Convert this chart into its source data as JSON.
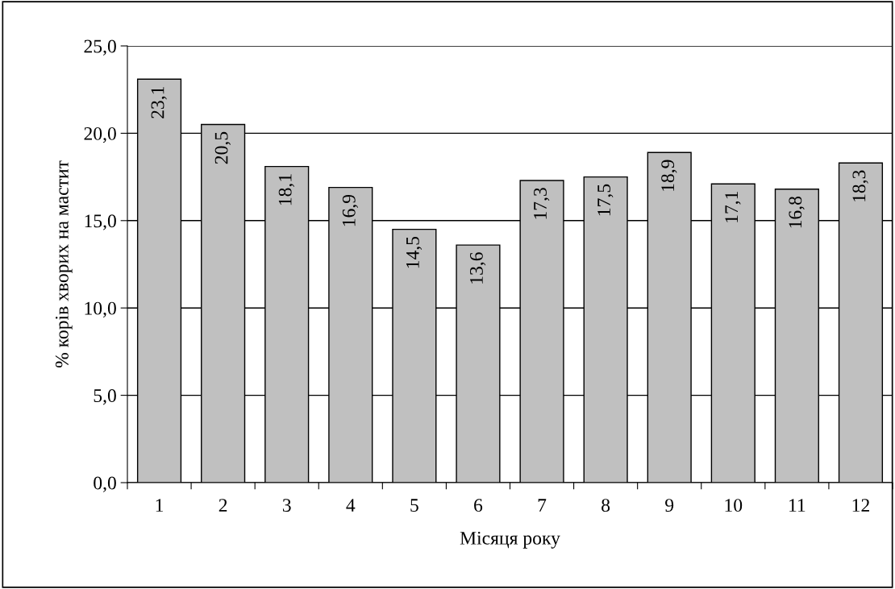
{
  "chart_data": {
    "type": "bar",
    "xlabel": "Місяця року",
    "ylabel": "% корів хворих на мастит",
    "categories": [
      "1",
      "2",
      "3",
      "4",
      "5",
      "6",
      "7",
      "8",
      "9",
      "10",
      "11",
      "12"
    ],
    "values": [
      23.1,
      20.5,
      18.1,
      16.9,
      14.5,
      13.6,
      17.3,
      17.5,
      18.9,
      17.1,
      16.8,
      18.3
    ],
    "value_labels": [
      "23,1",
      "20,5",
      "18,1",
      "16,9",
      "14,5",
      "13,6",
      "17,3",
      "17,5",
      "18,9",
      "17,1",
      "16,8",
      "18,3"
    ],
    "color": "#c0c0c0",
    "ylim": [
      0,
      25
    ],
    "yticks": [
      {
        "value": 0,
        "label": "0,0"
      },
      {
        "value": 5,
        "label": "5,0"
      },
      {
        "value": 10,
        "label": "10,0"
      },
      {
        "value": 15,
        "label": "15,0"
      },
      {
        "value": 20,
        "label": "20,0"
      },
      {
        "value": 25,
        "label": "25,0"
      }
    ],
    "grid": "y"
  }
}
